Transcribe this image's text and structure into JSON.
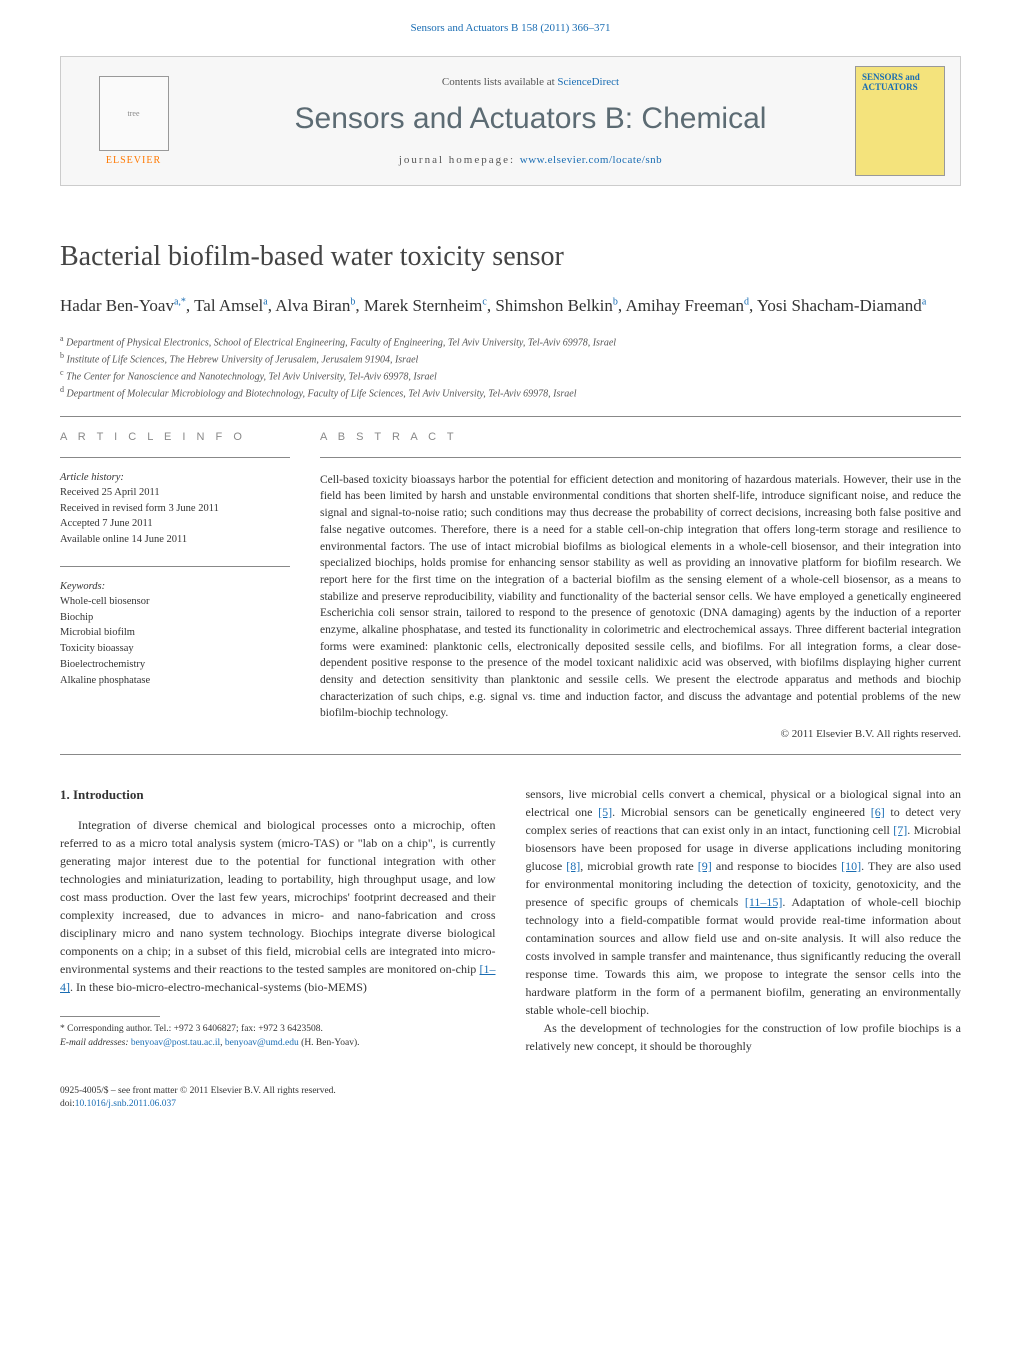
{
  "header": {
    "citation": "Sensors and Actuators B 158 (2011) 366–371",
    "contents_prefix": "Contents lists available at ",
    "contents_link": "ScienceDirect",
    "journal_title": "Sensors and Actuators B: Chemical",
    "homepage_prefix": "journal homepage: ",
    "homepage_link": "www.elsevier.com/locate/snb",
    "publisher": "ELSEVIER",
    "cover_title": "SENSORS and ACTUATORS"
  },
  "article": {
    "title": "Bacterial biofilm-based water toxicity sensor",
    "authors_html": "Hadar Ben-Yoav<sup>a,*</sup>, Tal Amsel<sup>a</sup>, Alva Biran<sup>b</sup>, Marek Sternheim<sup>c</sup>, Shimshon Belkin<sup>b</sup>, Amihay Freeman<sup>d</sup>, Yosi Shacham-Diamand<sup>a</sup>",
    "affiliations": [
      "a Department of Physical Electronics, School of Electrical Engineering, Faculty of Engineering, Tel Aviv University, Tel-Aviv 69978, Israel",
      "b Institute of Life Sciences, The Hebrew University of Jerusalem, Jerusalem 91904, Israel",
      "c The Center for Nanoscience and Nanotechnology, Tel Aviv University, Tel-Aviv 69978, Israel",
      "d Department of Molecular Microbiology and Biotechnology, Faculty of Life Sciences, Tel Aviv University, Tel-Aviv 69978, Israel"
    ]
  },
  "info": {
    "heading": "a r t i c l e   i n f o",
    "history_label": "Article history:",
    "history": [
      "Received 25 April 2011",
      "Received in revised form 3 June 2011",
      "Accepted 7 June 2011",
      "Available online 14 June 2011"
    ],
    "keywords_label": "Keywords:",
    "keywords": [
      "Whole-cell biosensor",
      "Biochip",
      "Microbial biofilm",
      "Toxicity bioassay",
      "Bioelectrochemistry",
      "Alkaline phosphatase"
    ]
  },
  "abstract": {
    "heading": "a b s t r a c t",
    "text": "Cell-based toxicity bioassays harbor the potential for efficient detection and monitoring of hazardous materials. However, their use in the field has been limited by harsh and unstable environmental conditions that shorten shelf-life, introduce significant noise, and reduce the signal and signal-to-noise ratio; such conditions may thus decrease the probability of correct decisions, increasing both false positive and false negative outcomes. Therefore, there is a need for a stable cell-on-chip integration that offers long-term storage and resilience to environmental factors. The use of intact microbial biofilms as biological elements in a whole-cell biosensor, and their integration into specialized biochips, holds promise for enhancing sensor stability as well as providing an innovative platform for biofilm research. We report here for the first time on the integration of a bacterial biofilm as the sensing element of a whole-cell biosensor, as a means to stabilize and preserve reproducibility, viability and functionality of the bacterial sensor cells. We have employed a genetically engineered Escherichia coli sensor strain, tailored to respond to the presence of genotoxic (DNA damaging) agents by the induction of a reporter enzyme, alkaline phosphatase, and tested its functionality in colorimetric and electrochemical assays. Three different bacterial integration forms were examined: planktonic cells, electronically deposited sessile cells, and biofilms. For all integration forms, a clear dose-dependent positive response to the presence of the model toxicant nalidixic acid was observed, with biofilms displaying higher current density and detection sensitivity than planktonic and sessile cells. We present the electrode apparatus and methods and biochip characterization of such chips, e.g. signal vs. time and induction factor, and discuss the advantage and potential problems of the new biofilm-biochip technology.",
    "copyright": "© 2011 Elsevier B.V. All rights reserved."
  },
  "body": {
    "section_heading": "1.  Introduction",
    "col1_p1": "Integration of diverse chemical and biological processes onto a microchip, often referred to as a micro total analysis system (micro-TAS) or \"lab on a chip\", is currently generating major interest due to the potential for functional integration with other technologies and miniaturization, leading to portability, high throughput usage, and low cost mass production. Over the last few years, microchips' footprint decreased and their complexity increased, due to advances in micro- and nano-fabrication and cross disciplinary micro and nano system technology. Biochips integrate diverse biological components on a chip; in a subset of this field, microbial cells are integrated into micro-environmental systems and their reactions to the tested samples are monitored on-chip ",
    "col1_ref1": "[1–4]",
    "col1_p1b": ". In these bio-micro-electro-mechanical-systems (bio-MEMS)",
    "col2_p1a": "sensors, live microbial cells convert a chemical, physical or a biological signal into an electrical one ",
    "col2_ref5": "[5]",
    "col2_p1b": ". Microbial sensors can be genetically engineered ",
    "col2_ref6": "[6]",
    "col2_p1c": " to detect very complex series of reactions that can exist only in an intact, functioning cell ",
    "col2_ref7": "[7]",
    "col2_p1d": ". Microbial biosensors have been proposed for usage in diverse applications including monitoring glucose ",
    "col2_ref8": "[8]",
    "col2_p1e": ", microbial growth rate ",
    "col2_ref9": "[9]",
    "col2_p1f": " and response to biocides ",
    "col2_ref10": "[10]",
    "col2_p1g": ". They are also used for environmental monitoring including the detection of toxicity, genotoxicity, and the presence of specific groups of chemicals ",
    "col2_ref11": "[11–15]",
    "col2_p1h": ". Adaptation of whole-cell biochip technology into a field-compatible format would provide real-time information about contamination sources and allow field use and on-site analysis. It will also reduce the costs involved in sample transfer and maintenance, thus significantly reducing the overall response time. Towards this aim, we propose to integrate the sensor cells into the hardware platform in the form of a permanent biofilm, generating an environmentally stable whole-cell biochip.",
    "col2_p2": "As the development of technologies for the construction of low profile biochips is a relatively new concept, it should be thoroughly"
  },
  "footnote": {
    "corr": "* Corresponding author. Tel.: +972 3 6406827; fax: +972 3 6423508.",
    "email_label": "E-mail addresses: ",
    "email1": "benyoav@post.tau.ac.il",
    "email2": "benyoav@umd.edu",
    "email_suffix": " (H. Ben-Yoav)."
  },
  "footer": {
    "line1": "0925-4005/$ – see front matter © 2011 Elsevier B.V. All rights reserved.",
    "doi_label": "doi:",
    "doi": "10.1016/j.snb.2011.06.037"
  },
  "colors": {
    "link": "#1a6db3",
    "publisher": "#ff7800",
    "journal_title": "#5c6b73",
    "cover_bg": "#f4e37c"
  }
}
